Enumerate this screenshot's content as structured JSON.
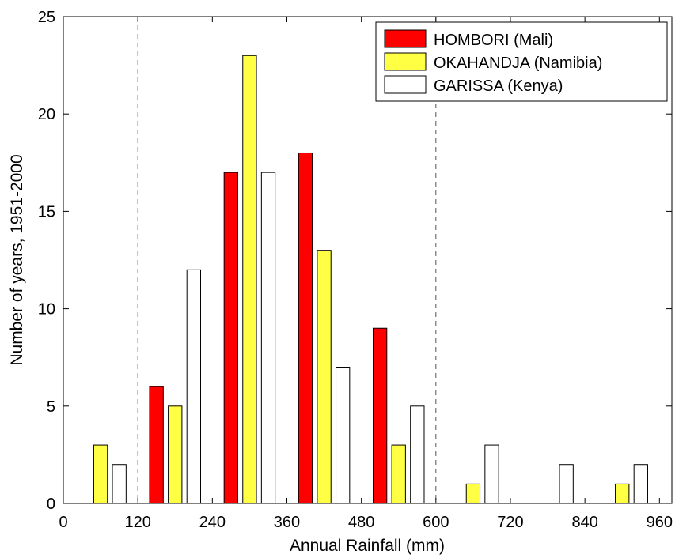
{
  "chart_data": {
    "type": "bar",
    "title": "",
    "xlabel": "Annual Rainfall (mm)",
    "ylabel": "Number of years, 1951-2000",
    "xlim": [
      0,
      980
    ],
    "ylim": [
      0,
      25
    ],
    "xticks": [
      0,
      120,
      240,
      360,
      480,
      600,
      720,
      840,
      960
    ],
    "yticks": [
      0,
      5,
      10,
      15,
      20,
      25
    ],
    "x": [
      60,
      180,
      300,
      420,
      540,
      660,
      780,
      900
    ],
    "grid": false,
    "legend_position": "top-right",
    "reference_lines_x": [
      120,
      600
    ],
    "series": [
      {
        "name": "HOMBORI (Mali)",
        "color": "#ff0000",
        "values": [
          0,
          6,
          17,
          18,
          9,
          0,
          0,
          0
        ]
      },
      {
        "name": "OKAHANDJA (Namibia)",
        "color": "#ffff44",
        "values": [
          3,
          5,
          23,
          13,
          3,
          1,
          0,
          1
        ]
      },
      {
        "name": "GARISSA (Kenya)",
        "color": "#ffffff",
        "values": [
          2,
          12,
          17,
          7,
          5,
          3,
          2,
          2
        ]
      }
    ]
  }
}
